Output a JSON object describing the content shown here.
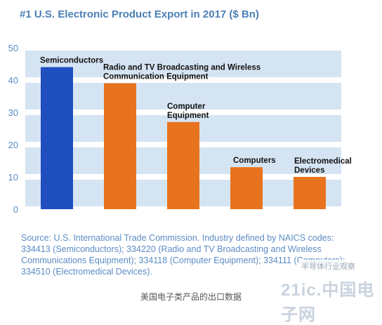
{
  "chart_data": {
    "type": "bar",
    "title": "#1 U.S. Electronic Product Export in 2017 ($ Bn)",
    "categories": [
      "Semiconductors",
      "Radio and TV Broadcasting and Wireless Communication Equipment",
      "Computer Equipment",
      "Computers",
      "Electromedical Devices"
    ],
    "values": [
      44,
      39,
      27,
      13,
      10
    ],
    "ylim": [
      0,
      50
    ],
    "yticks": [
      0,
      10,
      20,
      30,
      40,
      50
    ],
    "grid": "horizontal bands",
    "colors": [
      "#1f4fbf",
      "#e8731e",
      "#e8731e",
      "#e8731e",
      "#e8731e"
    ],
    "band_color": "#d5e4f2",
    "bar_labels": [
      [
        "Semiconductors"
      ],
      [
        "Radio and TV Broadcasting and Wireless",
        "Communication Equipment"
      ],
      [
        "Computer",
        "Equipment"
      ],
      [
        "Computers"
      ],
      [
        "Electromedical",
        "Devices"
      ]
    ]
  },
  "source_lines": [
    "Source: U.S. International Trade Commission. Industry defined by NAICS codes:",
    "334413 (Semiconductors); 334220 (Radio and TV Broadcasting and Wireless",
    "Communications Equipment); 334118 (Computer Equipment); 334111 (Computers);",
    "334510 (Electromedical Devices)."
  ],
  "watermark": {
    "brand": "半导体行业观察",
    "logo": "21ic.中国电子网"
  },
  "caption": "美国电子类产品的出口数据"
}
